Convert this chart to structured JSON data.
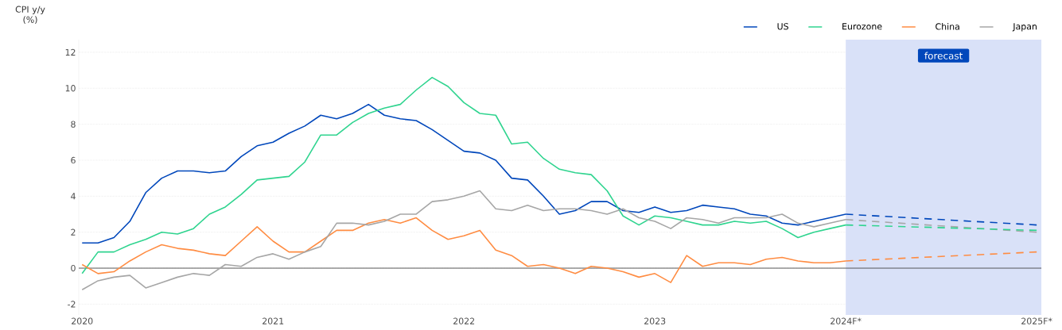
{
  "chart_data": {
    "type": "line",
    "ylabel": "CPI y/y (%)",
    "xlim": [
      "2019-12-25",
      "2025-01-10"
    ],
    "xticks": [
      {
        "value": "2020",
        "label": "2020"
      },
      {
        "value": "2021",
        "label": "2021"
      },
      {
        "value": "2022",
        "label": "2022"
      },
      {
        "value": "2023",
        "label": "2023"
      },
      {
        "value": "2024",
        "label": "2024F*"
      },
      {
        "value": "2025",
        "label": "2025F*"
      }
    ],
    "ylim": [
      -2.6,
      12.7
    ],
    "yticks": [
      -2,
      0,
      2,
      4,
      6,
      8,
      10,
      12
    ],
    "grid": "y",
    "legend": "top right",
    "line_style": "solid",
    "marker": "none",
    "x": [
      "2020-01",
      "2020-02",
      "2020-03",
      "2020-04",
      "2020-05",
      "2020-06",
      "2020-07",
      "2020-08",
      "2020-09",
      "2020-10",
      "2020-11",
      "2020-12",
      "2021-01",
      "2021-02",
      "2021-03",
      "2021-04",
      "2021-05",
      "2021-06",
      "2021-07",
      "2021-08",
      "2021-09",
      "2021-10",
      "2021-11",
      "2021-12",
      "2022-01",
      "2022-02",
      "2022-03",
      "2022-04",
      "2022-05",
      "2022-06",
      "2022-07",
      "2022-08",
      "2022-09",
      "2022-10",
      "2022-11",
      "2022-12",
      "2023-01",
      "2023-02",
      "2023-03",
      "2023-04",
      "2023-05",
      "2023-06",
      "2023-07",
      "2023-08",
      "2023-09",
      "2023-10",
      "2023-11",
      "2023-12",
      "2024-01"
    ],
    "series": [
      {
        "name": "US",
        "color": "#0047bb",
        "values": [
          1.4,
          1.4,
          1.7,
          2.6,
          4.2,
          5.0,
          5.4,
          5.4,
          5.3,
          5.4,
          6.2,
          6.8,
          7.0,
          7.5,
          7.9,
          8.5,
          8.3,
          8.6,
          9.1,
          8.5,
          8.3,
          8.2,
          7.7,
          7.1,
          6.5,
          6.4,
          6.0,
          5.0,
          4.9,
          4.0,
          3.0,
          3.2,
          3.7,
          3.7,
          3.2,
          3.1,
          3.4,
          3.1,
          3.2,
          3.5,
          3.4,
          3.3,
          3.0,
          2.9,
          2.5,
          2.4,
          2.6,
          2.8,
          3.0
        ]
      },
      {
        "name": "Eurozone",
        "color": "#2fd48f",
        "values": [
          -0.3,
          0.9,
          0.9,
          1.3,
          1.6,
          2.0,
          1.9,
          2.2,
          3.0,
          3.4,
          4.1,
          4.9,
          5.0,
          5.1,
          5.9,
          7.4,
          7.4,
          8.1,
          8.6,
          8.9,
          9.1,
          9.9,
          10.6,
          10.1,
          9.2,
          8.6,
          8.5,
          6.9,
          7.0,
          6.1,
          5.5,
          5.3,
          5.2,
          4.3,
          2.9,
          2.4,
          2.9,
          2.8,
          2.6,
          2.4,
          2.4,
          2.6,
          2.5,
          2.6,
          2.2,
          1.7,
          2.0,
          2.2,
          2.4
        ]
      },
      {
        "name": "China",
        "color": "#ff8c42",
        "values": [
          0.2,
          -0.3,
          -0.2,
          0.4,
          0.9,
          1.3,
          1.1,
          1.0,
          0.8,
          0.7,
          1.5,
          2.3,
          1.5,
          0.9,
          0.9,
          1.5,
          2.1,
          2.1,
          2.5,
          2.7,
          2.5,
          2.8,
          2.1,
          1.6,
          1.8,
          2.1,
          1.0,
          0.7,
          0.1,
          0.2,
          0.0,
          -0.3,
          0.1,
          0.0,
          -0.2,
          -0.5,
          -0.3,
          -0.8,
          0.7,
          0.1,
          0.3,
          0.3,
          0.2,
          0.5,
          0.6,
          0.4,
          0.3,
          0.3,
          0.4
        ]
      },
      {
        "name": "Japan",
        "color": "#a6a6a6",
        "values": [
          -1.2,
          -0.7,
          -0.5,
          -0.4,
          -1.1,
          -0.8,
          -0.5,
          -0.3,
          -0.4,
          0.2,
          0.1,
          0.6,
          0.8,
          0.5,
          0.9,
          1.2,
          2.5,
          2.5,
          2.4,
          2.6,
          3.0,
          3.0,
          3.7,
          3.8,
          4.0,
          4.3,
          3.3,
          3.2,
          3.5,
          3.2,
          3.3,
          3.3,
          3.2,
          3.0,
          3.3,
          2.8,
          2.6,
          2.2,
          2.8,
          2.7,
          2.5,
          2.8,
          2.8,
          2.8,
          3.0,
          2.5,
          2.3,
          2.5,
          2.7
        ]
      },
      {
        "color": "#0047bb",
        "line_style": "dashed",
        "x": [
          "2024-01",
          "2025-01"
        ],
        "values": [
          3.0,
          2.4
        ]
      },
      {
        "color": "#ff8c42",
        "line_style": "dashed",
        "x": [
          "2024-01",
          "2025-01"
        ],
        "values": [
          0.4,
          0.9
        ]
      },
      {
        "color": "#a6a6a6",
        "line_style": "dashed",
        "x": [
          "2024-01",
          "2025-01"
        ],
        "values": [
          2.7,
          2.0
        ]
      },
      {
        "color": "#2fd48f",
        "line_style": "dashed",
        "x": [
          "2024-01",
          "2025-01"
        ],
        "values": [
          2.4,
          2.1
        ]
      }
    ],
    "ref_lines": [
      {
        "axis": "y",
        "value": 0,
        "color": "#333333"
      }
    ],
    "bands": [
      {
        "axis": "x",
        "from": "2024-01",
        "to": "2025-01-10",
        "label": "forecast",
        "color": "#d9e1f8"
      }
    ]
  }
}
